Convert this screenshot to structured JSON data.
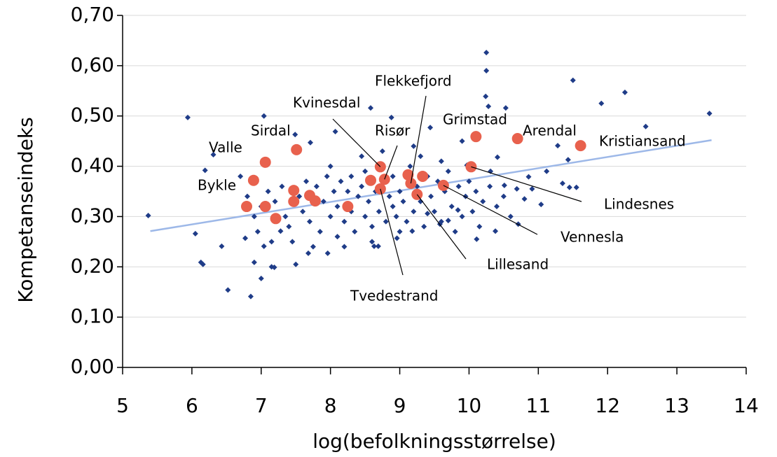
{
  "chart_data": {
    "type": "scatter",
    "x_label": "log(befolkningsstørrelse)",
    "y_label": "Kompetanseindeks",
    "xlim": [
      5,
      14
    ],
    "xticks": [
      5,
      6,
      7,
      8,
      9,
      10,
      11,
      12,
      13,
      14
    ],
    "ylim": [
      0,
      0.7
    ],
    "yticks": [
      {
        "value": 0,
        "label": "0,00"
      },
      {
        "value": 0.1,
        "label": "0,10"
      },
      {
        "value": 0.2,
        "label": "0,20"
      },
      {
        "value": 0.3,
        "label": "0,30"
      },
      {
        "value": 0.4,
        "label": "0,40"
      },
      {
        "value": 0.5,
        "label": "0,50"
      },
      {
        "value": 0.6,
        "label": "0,60"
      },
      {
        "value": 0.7,
        "label": "0,70"
      }
    ],
    "grid": true,
    "series": [
      {
        "color": "#1f3c88",
        "marker": "diamond",
        "x": [
          5.37,
          5.94,
          6.05,
          6.13,
          6.16,
          6.19,
          6.31,
          6.43,
          6.52,
          6.85,
          7.0,
          7.04,
          7.15,
          7.5,
          7.49,
          7.71,
          8.07,
          8.58,
          8.88,
          9.44,
          9.97,
          10.25,
          10.25,
          10.24,
          10.28,
          11.5,
          11.91,
          12.25,
          12.55,
          13.47,
          10.53,
          10.86,
          10.91,
          10.71,
          10.8,
          11.04,
          11.12,
          11.28,
          11.35,
          11.45,
          11.55,
          11.43,
          10.38,
          10.11,
          10.69,
          10.51,
          10.31,
          10.41,
          9.7,
          9.84,
          9.58,
          9.4,
          9.18,
          8.96,
          8.63,
          8.69,
          7.68,
          7.96,
          6.77,
          6.9,
          7.04,
          7.28,
          7.19,
          7.2,
          7.3,
          7.35,
          7.4,
          7.55,
          7.6,
          7.65,
          7.7,
          7.8,
          7.85,
          7.9,
          7.95,
          8.0,
          8.05,
          8.1,
          8.1,
          8.15,
          8.2,
          8.25,
          8.3,
          8.3,
          8.35,
          8.4,
          8.45,
          8.5,
          8.5,
          8.55,
          8.6,
          8.65,
          8.7,
          8.75,
          8.8,
          8.85,
          8.9,
          8.9,
          8.95,
          9.0,
          9.05,
          9.1,
          9.15,
          9.2,
          9.25,
          9.3,
          9.35,
          9.4,
          9.45,
          9.5,
          9.55,
          9.6,
          9.65,
          9.7,
          9.75,
          9.8,
          9.85,
          9.9,
          9.95,
          10.0,
          10.05,
          10.1,
          10.15,
          10.2,
          10.3,
          10.4,
          10.5,
          10.6,
          7.0,
          7.1,
          6.9,
          6.8,
          6.7,
          6.95,
          7.15,
          7.45,
          7.75,
          8.0,
          8.45,
          8.75,
          9.2,
          9.6,
          8.2,
          8.6,
          9.0,
          9.3,
          9.9
        ],
        "y": [
          0.302,
          0.497,
          0.266,
          0.209,
          0.205,
          0.392,
          0.423,
          0.241,
          0.154,
          0.141,
          0.177,
          0.5,
          0.2,
          0.205,
          0.463,
          0.447,
          0.469,
          0.516,
          0.497,
          0.477,
          0.402,
          0.626,
          0.59,
          0.539,
          0.519,
          0.571,
          0.525,
          0.547,
          0.479,
          0.505,
          0.516,
          0.379,
          0.355,
          0.285,
          0.335,
          0.324,
          0.39,
          0.441,
          0.366,
          0.358,
          0.358,
          0.413,
          0.271,
          0.255,
          0.355,
          0.362,
          0.39,
          0.418,
          0.292,
          0.313,
          0.285,
          0.306,
          0.271,
          0.257,
          0.241,
          0.241,
          0.227,
          0.227,
          0.257,
          0.209,
          0.241,
          0.271,
          0.199,
          0.33,
          0.36,
          0.3,
          0.28,
          0.34,
          0.31,
          0.37,
          0.29,
          0.36,
          0.27,
          0.33,
          0.38,
          0.3,
          0.35,
          0.32,
          0.26,
          0.37,
          0.29,
          0.35,
          0.31,
          0.38,
          0.27,
          0.34,
          0.36,
          0.3,
          0.39,
          0.33,
          0.28,
          0.35,
          0.31,
          0.37,
          0.29,
          0.34,
          0.32,
          0.38,
          0.3,
          0.35,
          0.33,
          0.29,
          0.4,
          0.31,
          0.36,
          0.33,
          0.28,
          0.38,
          0.34,
          0.31,
          0.37,
          0.29,
          0.35,
          0.39,
          0.32,
          0.27,
          0.36,
          0.3,
          0.34,
          0.37,
          0.31,
          0.35,
          0.28,
          0.33,
          0.36,
          0.32,
          0.34,
          0.3,
          0.32,
          0.35,
          0.3,
          0.34,
          0.38,
          0.27,
          0.25,
          0.25,
          0.24,
          0.4,
          0.42,
          0.43,
          0.44,
          0.41,
          0.24,
          0.25,
          0.27,
          0.42,
          0.45
        ]
      },
      {
        "color": "#e8614d",
        "marker": "circle",
        "x": [
          6.79,
          6.89,
          7.06,
          7.06,
          7.21,
          7.47,
          7.47,
          7.51,
          7.7,
          7.78,
          8.25,
          8.58,
          8.72,
          8.72,
          8.78,
          9.12,
          9.16,
          9.25,
          9.33,
          9.63,
          10.03,
          10.1,
          10.7,
          11.61
        ],
        "y": [
          0.32,
          0.372,
          0.408,
          0.32,
          0.296,
          0.352,
          0.33,
          0.433,
          0.342,
          0.331,
          0.32,
          0.372,
          0.399,
          0.355,
          0.374,
          0.383,
          0.366,
          0.344,
          0.38,
          0.362,
          0.399,
          0.459,
          0.455,
          0.441
        ]
      }
    ],
    "trendline": {
      "color": "#9db8e8",
      "x": [
        5.4,
        13.5
      ],
      "y": [
        0.271,
        0.452
      ]
    },
    "annotations": [
      "Bykle",
      "Valle",
      "Sirdal",
      "Kvinesdal",
      "Flekkefjord",
      "Risør",
      "Grimstad",
      "Arendal",
      "Kristiansand",
      "Lindesnes",
      "Vennesla",
      "Lillesand",
      "Tvedestrand"
    ]
  }
}
